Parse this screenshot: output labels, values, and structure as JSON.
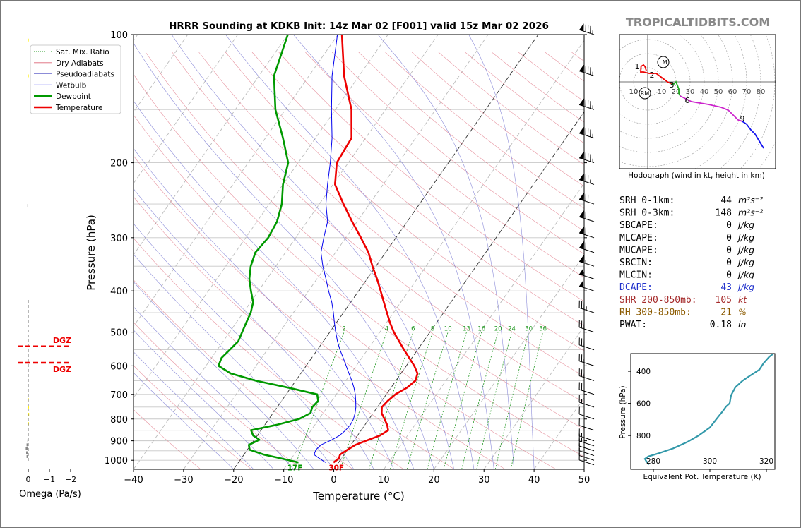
{
  "chart_data": [
    {
      "type": "line",
      "panel": "skew-t sounding",
      "title": "HRRR Sounding at KDKB Init: 14z Mar 02 [F001] valid 15z Mar 02 2026",
      "xlabel": "Temperature (°C)",
      "ylabel": "Pressure (hPa)",
      "xlim": [
        -40,
        50
      ],
      "ylim": [
        1050,
        100
      ],
      "y_scale": "log",
      "skew": true,
      "x_ticks": [
        "−40",
        "−30",
        "−20",
        "−10",
        "0",
        "10",
        "20",
        "30",
        "40",
        "50"
      ],
      "y_ticks": [
        "100",
        "200",
        "300",
        "400",
        "500",
        "600",
        "700",
        "800",
        "900",
        "1000"
      ],
      "legend": [
        "Sat. Mix. Ratio",
        "Dry Adiabats",
        "Pseudoadiabats",
        "Wetbulb",
        "Dewpoint",
        "Temperature"
      ],
      "legend_position": "top-left",
      "mixing_ratio_labels": [
        "2",
        "4",
        "6",
        "8",
        "10",
        "13",
        "16",
        "20",
        "24",
        "30",
        "36"
      ],
      "surface_labels": {
        "dewpoint": "17F",
        "temperature": "30F"
      },
      "colors": {
        "temperature": "#ee0000",
        "dewpoint": "#009900",
        "wetbulb": "#0000ee",
        "mixing": "#229922",
        "dry": "#dd6677",
        "pseudo": "#6666cc"
      },
      "series": [
        {
          "name": "Temperature",
          "p": [
            1012,
            990,
            970,
            945,
            920,
            895,
            875,
            850,
            825,
            800,
            775,
            750,
            725,
            700,
            675,
            650,
            625,
            600,
            575,
            550,
            525,
            500,
            475,
            450,
            425,
            400,
            375,
            350,
            325,
            300,
            275,
            250,
            225,
            200,
            175,
            150,
            125,
            100
          ],
          "t": [
            -1,
            -0.5,
            -0.8,
            0,
            0.9,
            2.8,
            4.5,
            5.4,
            4.4,
            3.1,
            1.7,
            0.9,
            1.2,
            1.8,
            3.2,
            3.9,
            3.3,
            1.6,
            -0.5,
            -2.7,
            -4.9,
            -7.2,
            -9.3,
            -11.3,
            -13.4,
            -15.6,
            -18,
            -20.7,
            -23.4,
            -27,
            -31,
            -35.2,
            -39.6,
            -42.3,
            -42.8,
            -46.8,
            -53,
            -59.2
          ]
        },
        {
          "name": "Dewpoint",
          "p": [
            1012,
            990,
            970,
            945,
            920,
            895,
            875,
            850,
            825,
            800,
            775,
            750,
            725,
            700,
            675,
            650,
            625,
            600,
            575,
            550,
            525,
            500,
            475,
            450,
            425,
            400,
            375,
            350,
            325,
            300,
            275,
            250,
            225,
            200,
            175,
            150,
            125,
            100
          ],
          "t": [
            -8,
            -12,
            -16,
            -19.5,
            -20.4,
            -19,
            -20.8,
            -22,
            -17.5,
            -14,
            -12.5,
            -13,
            -12.7,
            -13.8,
            -20.5,
            -28,
            -34,
            -37.5,
            -38,
            -37.5,
            -37,
            -37.5,
            -38,
            -38.5,
            -39.5,
            -41.5,
            -43.5,
            -45,
            -46,
            -45.5,
            -46,
            -47.5,
            -50,
            -52,
            -56.5,
            -62,
            -67,
            -70
          ]
        },
        {
          "name": "Wetbulb",
          "p": [
            1012,
            990,
            970,
            945,
            920,
            895,
            875,
            850,
            825,
            800,
            775,
            750,
            725,
            700,
            675,
            650,
            625,
            600,
            575,
            550,
            525,
            500,
            475,
            450,
            425,
            400,
            375,
            350,
            325,
            300,
            275,
            250,
            225,
            200,
            175,
            150,
            125,
            100
          ],
          "t": [
            -2.6,
            -4.4,
            -6,
            -6.3,
            -6,
            -4.5,
            -3.6,
            -3.1,
            -2.9,
            -3.1,
            -3.6,
            -4.3,
            -5.2,
            -6.2,
            -7.4,
            -8.8,
            -10.4,
            -12,
            -13.7,
            -15.5,
            -17.2,
            -18.8,
            -20.4,
            -22,
            -23.8,
            -26,
            -28.2,
            -30.6,
            -32.9,
            -34.4,
            -35.9,
            -38.7,
            -41.1,
            -43.6,
            -46.7,
            -50.8,
            -55.4,
            -60.1
          ]
        }
      ]
    },
    {
      "type": "line",
      "panel": "hodograph",
      "xlabel": "Hodograph (wind in kt, height in km)",
      "rings": [
        "10",
        "20",
        "30",
        "40",
        "50",
        "60",
        "70",
        "80"
      ],
      "left_rings": [
        "10",
        "10"
      ],
      "markers": [
        "LM",
        "RM"
      ],
      "height_labels": [
        "1",
        "2",
        "3",
        "6",
        "9"
      ],
      "segments": [
        {
          "color": "#ee0000",
          "u": [
            -1,
            -2,
            -3,
            -4.7,
            -5,
            -3,
            1,
            6,
            10,
            14,
            16,
            17
          ],
          "v": [
            8,
            11,
            12,
            11,
            7,
            7,
            6,
            6,
            3,
            0,
            -1,
            -1
          ]
        },
        {
          "color": "#22aa22",
          "u": [
            17,
            18,
            20,
            22,
            22,
            23
          ],
          "v": [
            -1,
            -2,
            0,
            -5,
            -8,
            -10
          ]
        },
        {
          "color": "#cc22cc",
          "u": [
            23,
            31,
            43,
            52,
            57,
            61,
            64,
            67
          ],
          "v": [
            -10,
            -14,
            -16,
            -18,
            -20,
            -24,
            -27,
            -28
          ]
        },
        {
          "color": "#1111ee",
          "u": [
            67,
            70,
            73,
            76,
            79,
            82
          ],
          "v": [
            -28,
            -30,
            -34,
            -37,
            -42,
            -47
          ]
        }
      ],
      "label_points": [
        {
          "label": "1",
          "u": -7.5,
          "v": 11
        },
        {
          "label": "2",
          "u": 3,
          "v": 5
        },
        {
          "label": "3",
          "u": 17,
          "v": -2
        },
        {
          "label": "6",
          "u": 28,
          "v": -13
        },
        {
          "label": "9",
          "u": 67,
          "v": -26
        }
      ],
      "marker_points": [
        {
          "label": "LM",
          "u": 11,
          "v": 14
        },
        {
          "label": "RM",
          "u": -2,
          "v": -8
        }
      ]
    },
    {
      "type": "line",
      "panel": "equivalent potential temperature",
      "xlabel": "Equivalent Pot. Temperature (K)",
      "ylabel": "Pressure (hPa)",
      "x_ticks": [
        "280",
        "300",
        "320"
      ],
      "y_ticks": [
        "400",
        "600",
        "800"
      ],
      "xlim": [
        272,
        323
      ],
      "ylim": [
        1010,
        290
      ],
      "color": "#3399aa",
      "theta_e": [
        278.5,
        277.5,
        277,
        278.2,
        282,
        287,
        292,
        296,
        300,
        302.2,
        304.5,
        305.7,
        307,
        307.5,
        309,
        311.5,
        314,
        317.5,
        319,
        321,
        322.5
      ],
      "p": [
        980,
        960,
        945,
        930,
        910,
        880,
        840,
        800,
        750,
        700,
        650,
        620,
        600,
        550,
        500,
        460,
        430,
        390,
        350,
        310,
        290
      ]
    },
    {
      "type": "bar",
      "panel": "omega",
      "xlabel": "Omega (Pa/s)",
      "x_ticks": [
        "0",
        "−1",
        "−2"
      ],
      "dgz_label": "DGZ",
      "dgz_p": [
        540,
        590
      ],
      "omega": [
        {
          "p": 980,
          "v": 0.08
        },
        {
          "p": 960,
          "v": 0.1
        },
        {
          "p": 940,
          "v": 0.12
        },
        {
          "p": 920,
          "v": 0.08
        },
        {
          "p": 900,
          "v": 0.04
        },
        {
          "p": 870,
          "v": 0.02
        },
        {
          "p": 820,
          "v": -0.03
        },
        {
          "p": 780,
          "v": -0.04
        },
        {
          "p": 750,
          "v": -0.03
        },
        {
          "p": 720,
          "v": -0.02
        },
        {
          "p": 680,
          "v": 0.02
        },
        {
          "p": 640,
          "v": 0.02
        },
        {
          "p": 600,
          "v": 0.02
        },
        {
          "p": 560,
          "v": 0.03
        },
        {
          "p": 520,
          "v": 0.02
        },
        {
          "p": 490,
          "v": 0.02
        },
        {
          "p": 460,
          "v": 0.02
        },
        {
          "p": 430,
          "v": 0.02
        },
        {
          "p": 400,
          "v": 0.02
        },
        {
          "p": 310,
          "v": 0.01
        },
        {
          "p": 275,
          "v": 0.03
        },
        {
          "p": 252,
          "v": 0.04
        },
        {
          "p": 220,
          "v": 0.01
        },
        {
          "p": 203,
          "v": 0.01
        },
        {
          "p": 165,
          "v": 0.01
        },
        {
          "p": 125,
          "v": -0.02
        },
        {
          "p": 103,
          "v": -0.02
        }
      ]
    }
  ],
  "branding": "TROPICALTIDBITS.COM",
  "params": [
    {
      "label": "SRH 0-1km:",
      "value": "44",
      "unit": "m²s⁻²",
      "color": "#000000"
    },
    {
      "label": "SRH 0-3km:",
      "value": "148",
      "unit": "m²s⁻²",
      "color": "#000000"
    },
    {
      "label": "SBCAPE:",
      "value": "0",
      "unit": "J/kg",
      "color": "#000000"
    },
    {
      "label": "MLCAPE:",
      "value": "0",
      "unit": "J/kg",
      "color": "#000000"
    },
    {
      "label": "MUCAPE:",
      "value": "0",
      "unit": "J/kg",
      "color": "#000000"
    },
    {
      "label": "SBCIN:",
      "value": "0",
      "unit": "J/kg",
      "color": "#000000"
    },
    {
      "label": "MLCIN:",
      "value": "0",
      "unit": "J/kg",
      "color": "#000000"
    },
    {
      "label": "DCAPE:",
      "value": "43",
      "unit": "J/kg",
      "color": "#2233cc"
    },
    {
      "label": "SHR 200-850mb:",
      "value": "105",
      "unit": "kt",
      "color": "#a52a2a"
    },
    {
      "label": "RH 300-850mb:",
      "value": "21",
      "unit": "%",
      "color": "#8b5a00"
    },
    {
      "label": "PWAT:",
      "value": "0.18",
      "unit": "in",
      "color": "#000000"
    }
  ]
}
